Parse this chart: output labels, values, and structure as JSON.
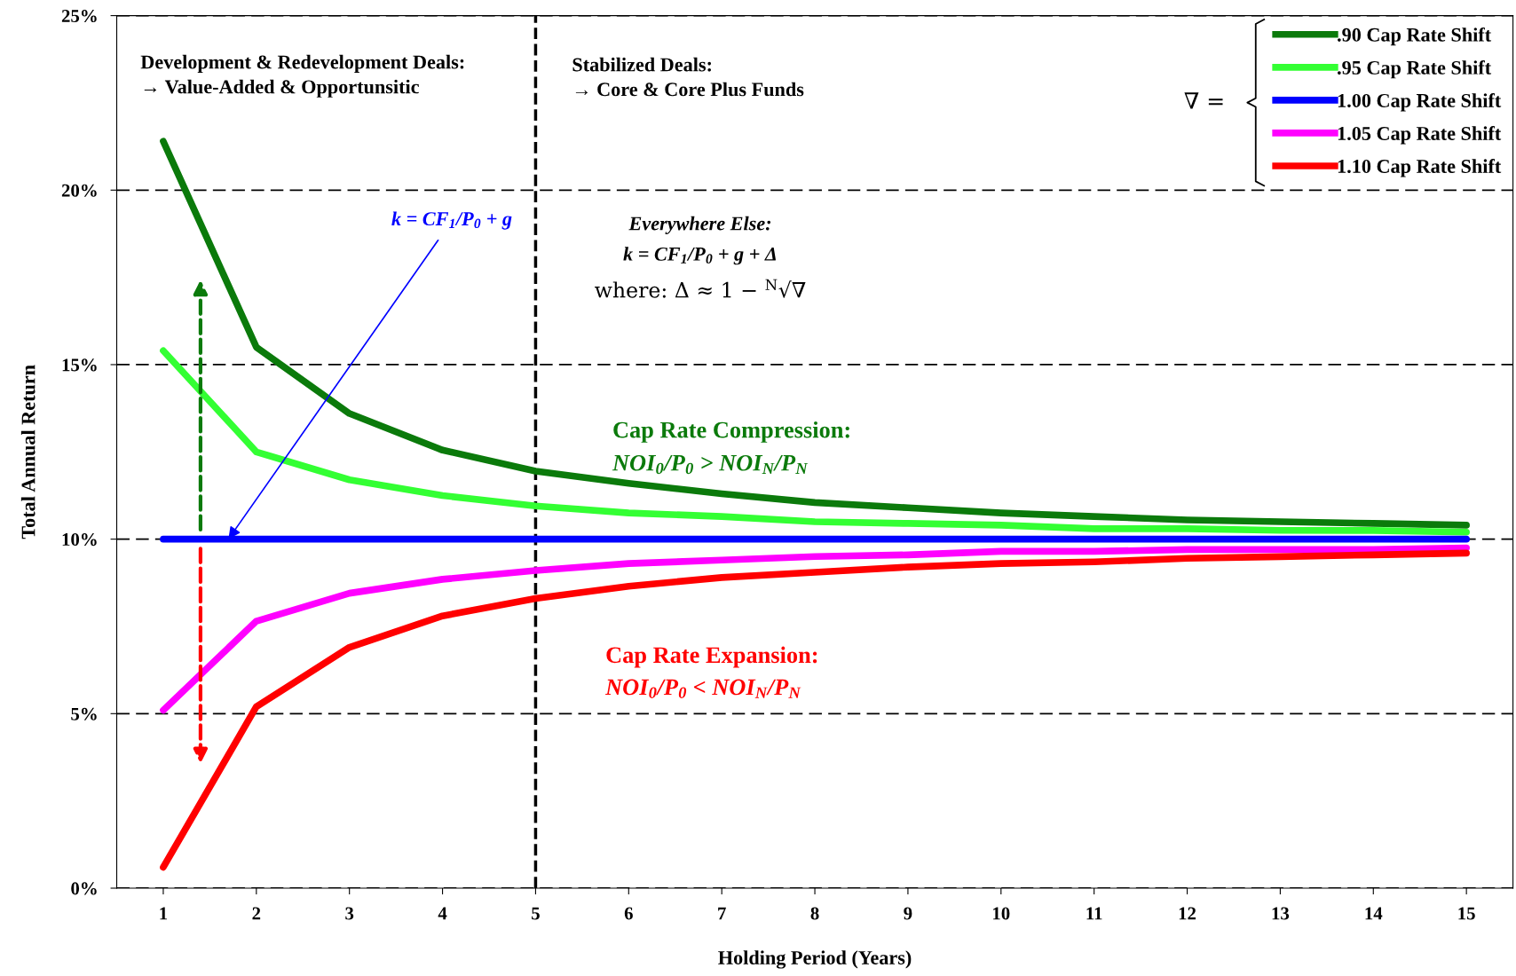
{
  "chart_data": {
    "type": "line",
    "xlabel": "Holding Period (Years)",
    "ylabel": "Total Annual Return",
    "x": [
      1,
      2,
      3,
      4,
      5,
      6,
      7,
      8,
      9,
      10,
      11,
      12,
      13,
      14,
      15
    ],
    "series": [
      {
        "name": ".90 Cap Rate Shift",
        "color": "#0b7a0b",
        "values": [
          21.4,
          15.5,
          13.6,
          12.55,
          11.95,
          11.6,
          11.3,
          11.05,
          10.9,
          10.75,
          10.65,
          10.55,
          10.5,
          10.45,
          10.4
        ]
      },
      {
        "name": ".95 Cap Rate Shift",
        "color": "#33ff33",
        "values": [
          15.4,
          12.5,
          11.7,
          11.25,
          10.95,
          10.75,
          10.65,
          10.5,
          10.45,
          10.4,
          10.3,
          10.3,
          10.25,
          10.25,
          10.2
        ]
      },
      {
        "name": "1.00 Cap Rate Shift",
        "color": "#0000ff",
        "values": [
          10,
          10,
          10,
          10,
          10,
          10,
          10,
          10,
          10,
          10,
          10,
          10,
          10,
          10,
          10
        ]
      },
      {
        "name": "1.05 Cap Rate Shift",
        "color": "#ff00ff",
        "values": [
          5.1,
          7.65,
          8.45,
          8.85,
          9.1,
          9.3,
          9.4,
          9.5,
          9.55,
          9.65,
          9.65,
          9.7,
          9.7,
          9.7,
          9.75
        ]
      },
      {
        "name": "1.10 Cap Rate Shift",
        "color": "#ff0000",
        "values": [
          0.6,
          5.2,
          6.9,
          7.8,
          8.3,
          8.65,
          8.9,
          9.05,
          9.2,
          9.3,
          9.35,
          9.45,
          9.5,
          9.55,
          9.6
        ]
      }
    ],
    "xlim": [
      0.5,
      15.5
    ],
    "xticks": [
      1,
      2,
      3,
      4,
      5,
      6,
      7,
      8,
      9,
      10,
      11,
      12,
      13,
      14,
      15
    ],
    "ylim": [
      0,
      25
    ],
    "yticks": [
      {
        "value": 0,
        "label": "0%"
      },
      {
        "value": 5,
        "label": "5%"
      },
      {
        "value": 10,
        "label": "10%"
      },
      {
        "value": 15,
        "label": "15%"
      },
      {
        "value": 20,
        "label": "20%"
      },
      {
        "value": 25,
        "label": "25%"
      }
    ],
    "grid": "y",
    "legend": "top right",
    "legend_title": "∇ =",
    "marker": "none",
    "line_style": "solid",
    "ref_lines": [
      {
        "axis": "x",
        "value": 5,
        "label": null,
        "color": "#000000",
        "line_style": "dashed"
      }
    ],
    "annotations": [
      "Development & Redevelopment Deals:\n→ Value-Added & Opportunsitic",
      "Stabilized Deals:\n→ Core & Core Plus Funds",
      {
        "text": "k = CF$_{1}$/P$_{0}$ + g",
        "x": 1.7,
        "y": 10
      },
      "Everywhere Else:",
      "k = CF$_{1}$/P$_{0}$ + g + Δ",
      "where: Δ ≈ 1 − $^{N}$√∇",
      "Cap Rate Compression:",
      "NOI$_{0}$/P$_{0}$ > NOI$_{N}$/P$_{N}$",
      "Cap Rate Expansion:",
      "NOI$_{0}$/P$_{0}$ < NOI$_{N}$/P$_{N}$"
    ]
  }
}
